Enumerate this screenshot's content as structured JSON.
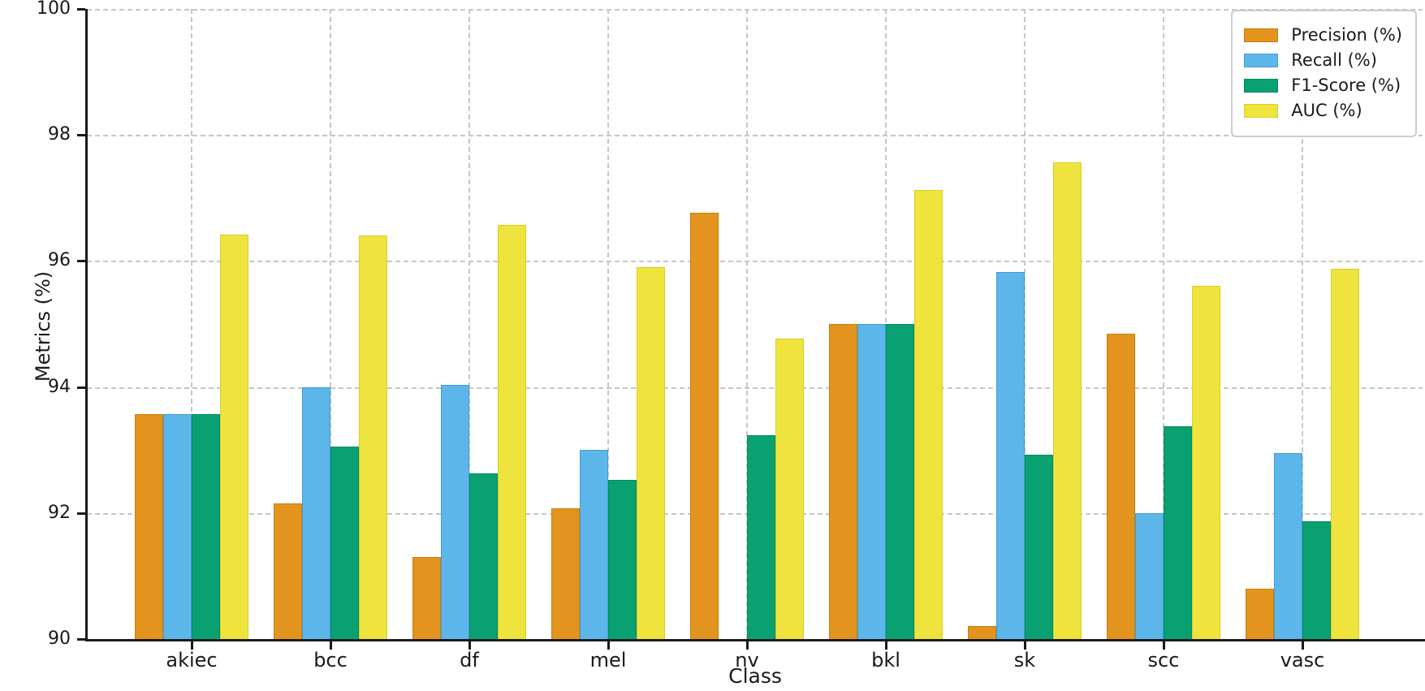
{
  "chart_data": {
    "type": "bar",
    "title": "",
    "xlabel": "Class",
    "ylabel": "Metrics (%)",
    "ylim": [
      90,
      100
    ],
    "yticks": [
      90,
      92,
      94,
      96,
      98,
      100
    ],
    "categories": [
      "akiec",
      "bcc",
      "df",
      "mel",
      "nv",
      "bkl",
      "sk",
      "scc",
      "vasc"
    ],
    "grid": true,
    "grid_style": "dashed",
    "grid_color": "#c6c6c6",
    "legend_position": "upper right",
    "series": [
      {
        "name": "Precision (%)",
        "color": "#e2941e",
        "edge": "#c87f0e",
        "values": [
          93.57,
          92.15,
          91.3,
          92.08,
          96.76,
          95.0,
          90.2,
          94.84,
          90.8
        ]
      },
      {
        "name": "Recall (%)",
        "color": "#5db6e9",
        "edge": "#3f9fd6",
        "values": [
          93.57,
          94.0,
          94.03,
          93.0,
          null,
          95.0,
          95.82,
          92.0,
          92.95
        ]
      },
      {
        "name": "F1-Score (%)",
        "color": "#09a171",
        "edge": "#048a60",
        "values": [
          93.57,
          93.06,
          92.63,
          92.53,
          93.24,
          95.0,
          92.92,
          93.38,
          91.87
        ]
      },
      {
        "name": "AUC (%)",
        "color": "#efe43d",
        "edge": "#d8cd28",
        "values": [
          96.42,
          96.4,
          96.57,
          95.9,
          94.77,
          97.12,
          97.56,
          95.61,
          95.87
        ]
      }
    ]
  }
}
